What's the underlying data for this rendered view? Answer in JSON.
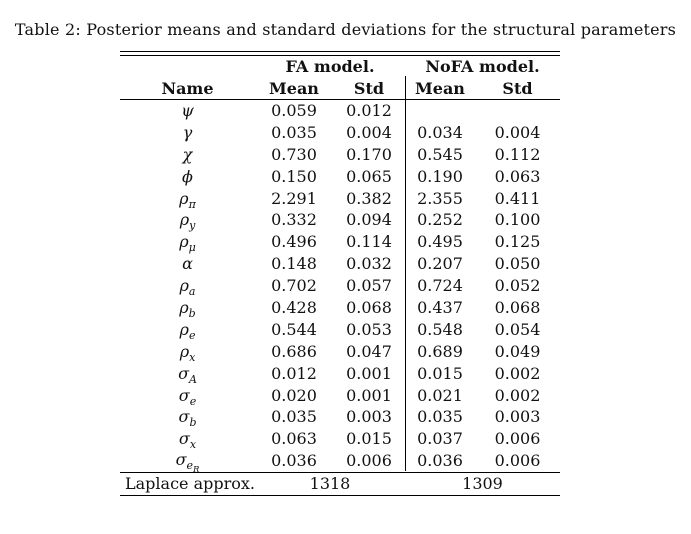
{
  "caption": {
    "text": "Table 2: Posterior means and standard deviations for the structural parameters"
  },
  "table": {
    "group_headers": [
      "FA model.",
      "NoFA model."
    ],
    "col_headers": [
      "Name",
      "Mean",
      "Std",
      "Mean",
      "Std"
    ],
    "rows": [
      {
        "base": "ψ",
        "sub": "",
        "subsub": "",
        "fa_mean": "0.059",
        "fa_std": "0.012",
        "nofa_mean": "",
        "nofa_std": ""
      },
      {
        "base": "γ",
        "sub": "",
        "subsub": "",
        "fa_mean": "0.035",
        "fa_std": "0.004",
        "nofa_mean": "0.034",
        "nofa_std": "0.004"
      },
      {
        "base": "χ",
        "sub": "",
        "subsub": "",
        "fa_mean": "0.730",
        "fa_std": "0.170",
        "nofa_mean": "0.545",
        "nofa_std": "0.112"
      },
      {
        "base": "ϕ",
        "sub": "",
        "subsub": "",
        "fa_mean": "0.150",
        "fa_std": "0.065",
        "nofa_mean": "0.190",
        "nofa_std": "0.063"
      },
      {
        "base": "ρ",
        "sub": "π",
        "subsub": "",
        "fa_mean": "2.291",
        "fa_std": "0.382",
        "nofa_mean": "2.355",
        "nofa_std": "0.411"
      },
      {
        "base": "ρ",
        "sub": "y",
        "subsub": "",
        "fa_mean": "0.332",
        "fa_std": "0.094",
        "nofa_mean": "0.252",
        "nofa_std": "0.100"
      },
      {
        "base": "ρ",
        "sub": "μ",
        "subsub": "",
        "fa_mean": "0.496",
        "fa_std": "0.114",
        "nofa_mean": "0.495",
        "nofa_std": "0.125"
      },
      {
        "base": "α",
        "sub": "",
        "subsub": "",
        "fa_mean": "0.148",
        "fa_std": "0.032",
        "nofa_mean": "0.207",
        "nofa_std": "0.050"
      },
      {
        "base": "ρ",
        "sub": "a",
        "subsub": "",
        "fa_mean": "0.702",
        "fa_std": "0.057",
        "nofa_mean": "0.724",
        "nofa_std": "0.052"
      },
      {
        "base": "ρ",
        "sub": "b",
        "subsub": "",
        "fa_mean": "0.428",
        "fa_std": "0.068",
        "nofa_mean": "0.437",
        "nofa_std": "0.068"
      },
      {
        "base": "ρ",
        "sub": "e",
        "subsub": "",
        "fa_mean": "0.544",
        "fa_std": "0.053",
        "nofa_mean": "0.548",
        "nofa_std": "0.054"
      },
      {
        "base": "ρ",
        "sub": "x",
        "subsub": "",
        "fa_mean": "0.686",
        "fa_std": "0.047",
        "nofa_mean": "0.689",
        "nofa_std": "0.049"
      },
      {
        "base": "σ",
        "sub": "A",
        "subsub": "",
        "fa_mean": "0.012",
        "fa_std": "0.001",
        "nofa_mean": "0.015",
        "nofa_std": "0.002"
      },
      {
        "base": "σ",
        "sub": "e",
        "subsub": "",
        "fa_mean": "0.020",
        "fa_std": "0.001",
        "nofa_mean": "0.021",
        "nofa_std": "0.002"
      },
      {
        "base": "σ",
        "sub": "b",
        "subsub": "",
        "fa_mean": "0.035",
        "fa_std": "0.003",
        "nofa_mean": "0.035",
        "nofa_std": "0.003"
      },
      {
        "base": "σ",
        "sub": "x",
        "subsub": "",
        "fa_mean": "0.063",
        "fa_std": "0.015",
        "nofa_mean": "0.037",
        "nofa_std": "0.006"
      },
      {
        "base": "σ",
        "sub": "e",
        "subsub": "R",
        "fa_mean": "0.036",
        "fa_std": "0.006",
        "nofa_mean": "0.036",
        "nofa_std": "0.006"
      }
    ],
    "footer": {
      "label": "Laplace approx.",
      "fa_value": "1318",
      "nofa_value": "1309"
    }
  }
}
